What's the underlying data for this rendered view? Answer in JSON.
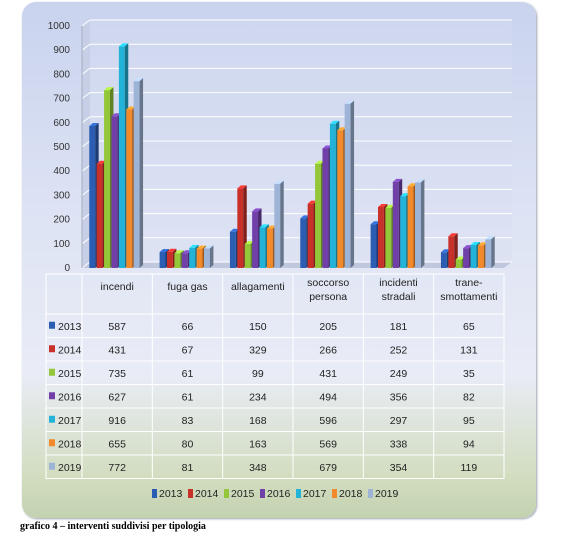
{
  "chart_data": {
    "type": "bar",
    "categories": [
      "incendi",
      "fuga gas",
      "allagamenti",
      "soccorso persona",
      "incidenti stradali",
      "trane-smottamenti"
    ],
    "category_lines": [
      [
        "incendi"
      ],
      [
        "fuga gas"
      ],
      [
        "allagamenti"
      ],
      [
        "soccorso",
        "persona"
      ],
      [
        "incidenti",
        "stradali"
      ],
      [
        "trane-",
        "smottamenti"
      ]
    ],
    "series": [
      {
        "name": "2013",
        "color": "#2b5db3",
        "values": [
          587,
          66,
          150,
          205,
          181,
          65
        ]
      },
      {
        "name": "2014",
        "color": "#c8302a",
        "values": [
          431,
          67,
          329,
          266,
          252,
          131
        ]
      },
      {
        "name": "2015",
        "color": "#93c638",
        "values": [
          735,
          61,
          99,
          431,
          249,
          35
        ]
      },
      {
        "name": "2016",
        "color": "#7040a8",
        "values": [
          627,
          61,
          234,
          494,
          356,
          82
        ]
      },
      {
        "name": "2017",
        "color": "#23b3d8",
        "values": [
          916,
          83,
          168,
          596,
          297,
          95
        ]
      },
      {
        "name": "2018",
        "color": "#f28a2c",
        "values": [
          655,
          80,
          163,
          569,
          338,
          94
        ]
      },
      {
        "name": "2019",
        "color": "#9eb4d6",
        "values": [
          772,
          81,
          348,
          679,
          354,
          119
        ]
      }
    ],
    "y_ticks": [
      "0",
      "100",
      "200",
      "300",
      "400",
      "500",
      "600",
      "700",
      "800",
      "900",
      "1000"
    ],
    "ylim": [
      0,
      1000
    ],
    "grid": true,
    "legend": "bottom",
    "data_table": true
  },
  "caption": "grafico 4 – interventi suddivisi per tipologia"
}
